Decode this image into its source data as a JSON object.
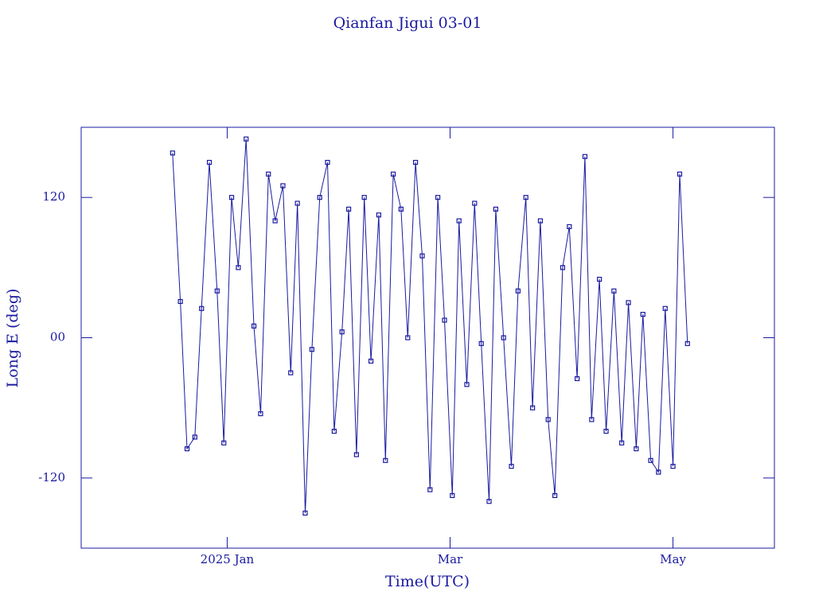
{
  "chart_data": {
    "type": "line",
    "title": "Qianfan Jigui 03-01",
    "xlabel": "Time(UTC)",
    "ylabel": "Long E (deg)",
    "color": "#1a1aa0",
    "markers": true,
    "x": [
      0.51,
      0.58,
      0.64,
      0.71,
      0.77,
      0.84,
      0.91,
      0.97,
      1.04,
      1.1,
      1.17,
      1.24,
      1.3,
      1.37,
      1.43,
      1.5,
      1.57,
      1.63,
      1.7,
      1.76,
      1.83,
      1.9,
      1.96,
      2.03,
      2.09,
      2.16,
      2.23,
      2.29,
      2.36,
      2.42,
      2.49,
      2.56,
      2.62,
      2.69,
      2.75,
      2.82,
      2.89,
      2.95,
      3.02,
      3.08,
      3.15,
      3.22,
      3.28,
      3.35,
      3.41,
      3.48,
      3.55,
      3.61,
      3.68,
      3.74,
      3.81,
      3.88,
      3.94,
      4.01,
      4.07,
      4.14,
      4.21,
      4.27,
      4.34,
      4.4,
      4.47,
      4.54,
      4.6,
      4.67,
      4.73,
      4.8,
      4.87,
      4.93,
      5.0,
      5.06,
      5.13
    ],
    "values": [
      158,
      31,
      -95,
      -85,
      25,
      150,
      40,
      -90,
      120,
      60,
      170,
      10,
      -65,
      140,
      100,
      130,
      -30,
      115,
      -150,
      -10,
      120,
      150,
      -80,
      5,
      110,
      -100,
      120,
      -20,
      105,
      -105,
      140,
      110,
      0,
      150,
      70,
      -130,
      120,
      15,
      -135,
      100,
      -40,
      115,
      -5,
      -140,
      110,
      0,
      -110,
      40,
      120,
      -60,
      100,
      -70,
      -135,
      60,
      95,
      -35,
      155,
      -70,
      50,
      -80,
      40,
      -90,
      30,
      -95,
      20,
      -105,
      -115,
      25,
      -110,
      140,
      -5
    ],
    "xlim": [
      -0.31,
      5.91
    ],
    "xticks": [
      {
        "value": 1,
        "label": "2025 Jan"
      },
      {
        "value": 3,
        "label": "Mar"
      },
      {
        "value": 5,
        "label": "May"
      }
    ],
    "ylim": [
      -180,
      180
    ],
    "yticks": [
      {
        "value": -120,
        "label": "-120"
      },
      {
        "value": 0,
        "label": "00"
      },
      120
    ]
  }
}
